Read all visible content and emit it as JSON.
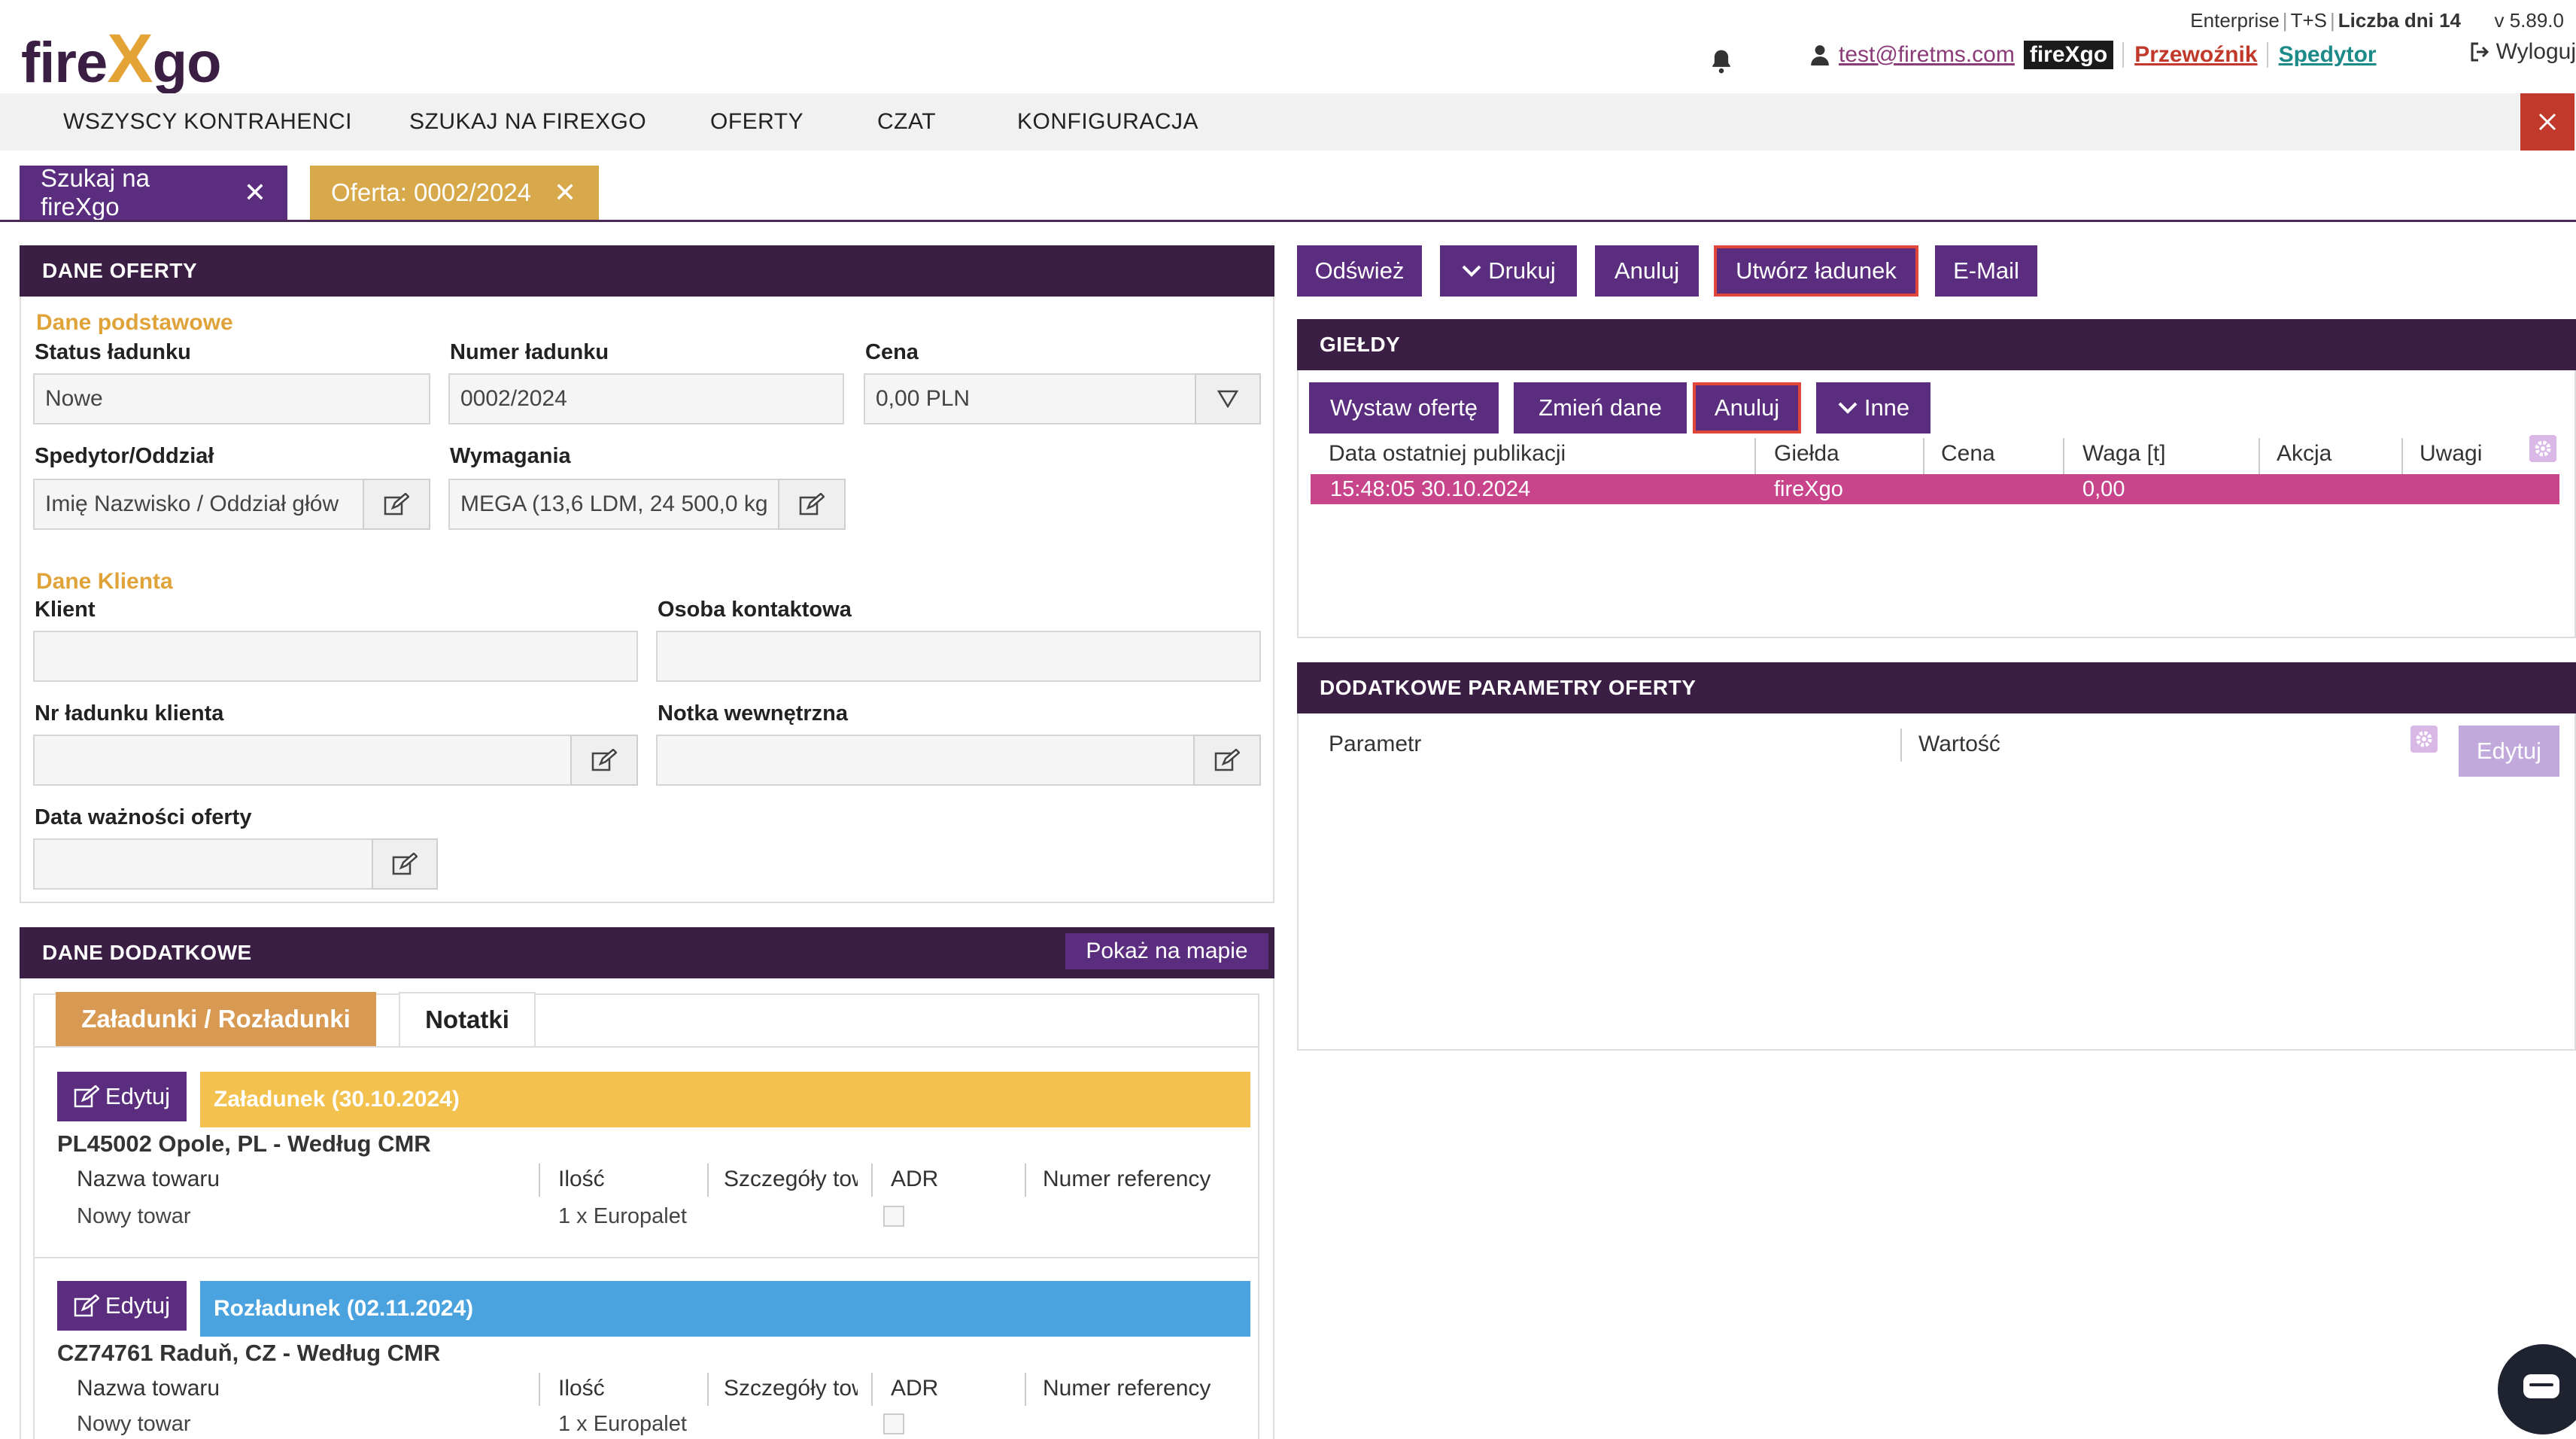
{
  "header": {
    "logo": {
      "part1": "fire",
      "part2": "X",
      "part3": "go"
    },
    "plan": "Enterprise",
    "plan2": "T+S",
    "days_left": "Liczba dni 14",
    "version": "v 5.89.0",
    "user_email": "test@firetms.com",
    "brand_badge": "fireXgo",
    "role_carrier": "Przewoźnik",
    "role_forwarder": "Spedytor",
    "logout": "Wyloguj"
  },
  "nav": {
    "items": [
      "WSZYSCY KONTRAHENCI",
      "SZUKAJ NA FIREXGO",
      "OFERTY",
      "CZAT",
      "KONFIGURACJA"
    ]
  },
  "tabs": [
    {
      "label": "Szukaj na fireXgo",
      "color": "#5b2d7f"
    },
    {
      "label": "Oferta: 0002/2024",
      "color": "#d7a94b"
    }
  ],
  "offer": {
    "title": "DANE OFERTY",
    "basic_section": "Dane podstawowe",
    "status_label": "Status ładunku",
    "status_value": "Nowe",
    "number_label": "Numer ładunku",
    "number_value": "0002/2024",
    "price_label": "Cena",
    "price_value": "0,00 PLN",
    "forwarder_label": "Spedytor/Oddział",
    "forwarder_value": "Imię Nazwisko / Oddział głów",
    "requirements_label": "Wymagania",
    "requirements_value": "MEGA (13,6 LDM, 24 500,0 kg",
    "client_section": "Dane Klienta",
    "client_label": "Klient",
    "client_value": "",
    "contact_label": "Osoba kontaktowa",
    "contact_value": "",
    "client_load_no_label": "Nr ładunku klienta",
    "client_load_no_value": "",
    "internal_note_label": "Notka wewnętrzna",
    "internal_note_value": "",
    "validity_label": "Data ważności oferty",
    "validity_value": ""
  },
  "extra": {
    "title": "DANE DODATKOWE",
    "map_button": "Pokaż na mapie",
    "tab_loads": "Załadunki / Rozładunki",
    "tab_notes": "Notatki",
    "edit_label": "Edytuj",
    "columns": [
      "Nazwa towaru",
      "Ilość",
      "Szczegóły tow",
      "ADR",
      "Numer referency"
    ],
    "stops": [
      {
        "bar": "Załadunek (30.10.2024)",
        "bar_color": "#f3c14d",
        "title": "PL45002 Opole, PL - Według CMR",
        "goods": "Nowy towar",
        "qty": "1 x Europalet"
      },
      {
        "bar": "Rozładunek (02.11.2024)",
        "bar_color": "#4aa3df",
        "title": "CZ74761 Raduň, CZ - Według CMR",
        "goods": "Nowy towar",
        "qty": "1 x Europalet"
      }
    ]
  },
  "actions": {
    "refresh": "Odśwież",
    "print": "Drukuj",
    "cancel": "Anuluj",
    "create_load": "Utwórz ładunek",
    "email": "E-Mail"
  },
  "exchanges": {
    "title": "GIEŁDY",
    "publish": "Wystaw ofertę",
    "change": "Zmień dane",
    "cancel": "Anuluj",
    "other": "Inne",
    "columns": [
      "Data ostatniej publikacji",
      "Giełda",
      "Cena",
      "Waga [t]",
      "Akcja",
      "Uwagi"
    ],
    "rows": [
      {
        "date": "15:48:05 30.10.2024",
        "exchange": "fireXgo",
        "price": "",
        "weight": "0,00",
        "action": "",
        "notes": ""
      }
    ],
    "row_color": "#c8458c"
  },
  "params": {
    "title": "DODATKOWE PARAMETRY OFERTY",
    "col_param": "Parametr",
    "col_value": "Wartość",
    "edit": "Edytuj"
  },
  "colors": {
    "brand_dark": "#3a1e43",
    "accent_purple": "#5b2d7f",
    "accent_gold": "#e0a33a",
    "danger": "#c0392b"
  }
}
